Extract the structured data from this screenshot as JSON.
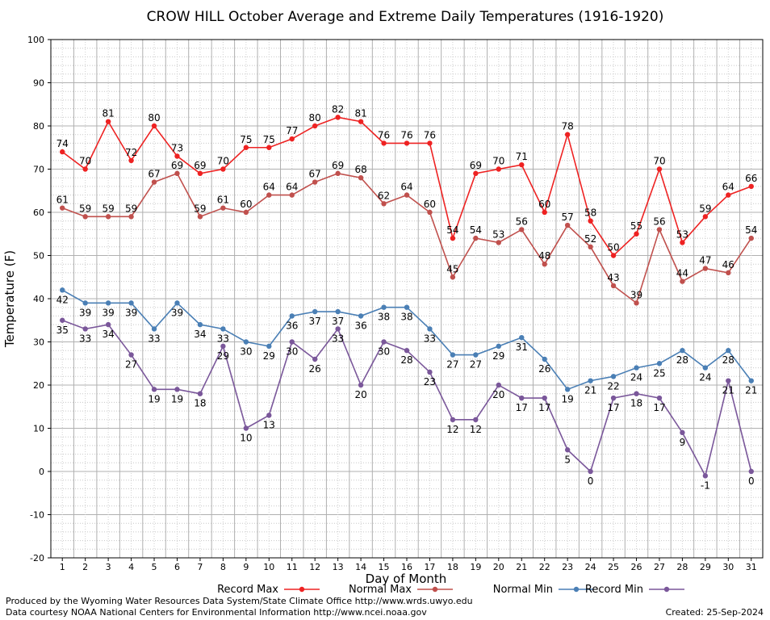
{
  "chart_data": {
    "type": "line",
    "title": "CROW HILL October Average and Extreme Daily Temperatures (1916-1920)",
    "xlabel": "Day of Month",
    "ylabel": "Temperature (F)",
    "x": [
      1,
      2,
      3,
      4,
      5,
      6,
      7,
      8,
      9,
      10,
      11,
      12,
      13,
      14,
      15,
      16,
      17,
      18,
      19,
      20,
      21,
      22,
      23,
      24,
      25,
      26,
      27,
      28,
      29,
      30,
      31
    ],
    "ylim": [
      -20,
      100
    ],
    "yticks": [
      -20,
      -10,
      0,
      10,
      20,
      30,
      40,
      50,
      60,
      70,
      80,
      90,
      100
    ],
    "grid": true,
    "legend_position": "bottom",
    "series": [
      {
        "name": "Record Max",
        "color": "#ee2222",
        "label_position": "above",
        "values": [
          74,
          70,
          81,
          72,
          80,
          73,
          69,
          70,
          75,
          75,
          77,
          80,
          82,
          81,
          76,
          76,
          76,
          54,
          69,
          70,
          71,
          60,
          78,
          58,
          50,
          55,
          70,
          53,
          59,
          64,
          66
        ]
      },
      {
        "name": "Normal Max",
        "color": "#c0504d",
        "label_position": "above",
        "values": [
          61,
          59,
          59,
          59,
          67,
          69,
          59,
          61,
          60,
          64,
          64,
          67,
          69,
          68,
          62,
          64,
          60,
          45,
          54,
          53,
          56,
          48,
          57,
          52,
          43,
          39,
          56,
          44,
          47,
          46,
          54
        ]
      },
      {
        "name": "Normal Min",
        "color": "#4a7fb5",
        "label_position": "below",
        "values": [
          42,
          39,
          39,
          39,
          33,
          39,
          34,
          33,
          30,
          29,
          36,
          37,
          37,
          36,
          38,
          38,
          33,
          27,
          27,
          29,
          31,
          26,
          19,
          21,
          22,
          24,
          25,
          28,
          24,
          28,
          21
        ]
      },
      {
        "name": "Record Min",
        "color": "#7a579a",
        "label_position": "below",
        "values": [
          35,
          33,
          34,
          27,
          19,
          19,
          18,
          29,
          10,
          13,
          30,
          26,
          33,
          20,
          30,
          28,
          23,
          12,
          12,
          20,
          17,
          17,
          5,
          0,
          17,
          18,
          17,
          9,
          -1,
          21,
          0
        ]
      }
    ]
  },
  "footer": {
    "produced_by": "Produced by the Wyoming Water Resources Data System/State Climate Office http://www.wrds.uwyo.edu",
    "courtesy": "Data courtesy NOAA National Centers for Environmental Information http://www.ncei.noaa.gov",
    "created": "Created: 25-Sep-2024"
  }
}
